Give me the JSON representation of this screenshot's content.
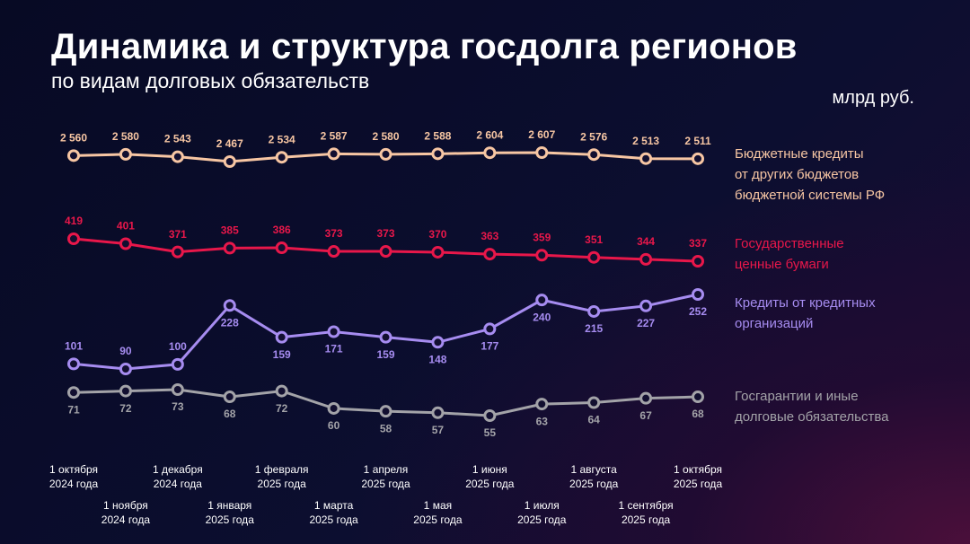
{
  "chart_data": {
    "type": "line",
    "title": "Динамика и структура госдолга регионов",
    "subtitle": "по видам долговых обязательств",
    "unit": "млрд руб.",
    "categories": [
      "1 октября\n2024 года",
      "1 ноября\n2024 года",
      "1 декабря\n2024 года",
      "1 января\n2025 года",
      "1 февраля\n2025 года",
      "1 марта\n2025 года",
      "1 апреля\n2025 года",
      "1 мая\n2025 года",
      "1 июня\n2025 года",
      "1 июля\n2025 года",
      "1 августа\n2025 года",
      "1 сентября\n2025 года",
      "1 октября\n2025 года"
    ],
    "series": [
      {
        "name": "Бюджетные кредиты\nот других бюджетов\nбюджетной системы РФ",
        "color": "#f7c6a3",
        "values": [
          2560,
          2580,
          2543,
          2467,
          2534,
          2587,
          2580,
          2588,
          2604,
          2607,
          2576,
          2513,
          2511
        ],
        "value_labels": [
          "2 560",
          "2 580",
          "2 543",
          "2 467",
          "2 534",
          "2 587",
          "2 580",
          "2 588",
          "2 604",
          "2 607",
          "2 576",
          "2 513",
          "2 511"
        ]
      },
      {
        "name": "Государственные\nценные бумаги",
        "color": "#e8174a",
        "values": [
          419,
          401,
          371,
          385,
          386,
          373,
          373,
          370,
          363,
          359,
          351,
          344,
          337
        ]
      },
      {
        "name": "Кредиты от кредитных\nорганизаций",
        "color": "#a68cf0",
        "values": [
          101,
          90,
          100,
          228,
          159,
          171,
          159,
          148,
          177,
          240,
          215,
          227,
          252
        ]
      },
      {
        "name": "Госгарантии и иные\nдолговые обязательства",
        "color": "#a3a3a8",
        "values": [
          71,
          72,
          73,
          68,
          72,
          60,
          58,
          57,
          55,
          63,
          64,
          67,
          68
        ]
      }
    ]
  }
}
